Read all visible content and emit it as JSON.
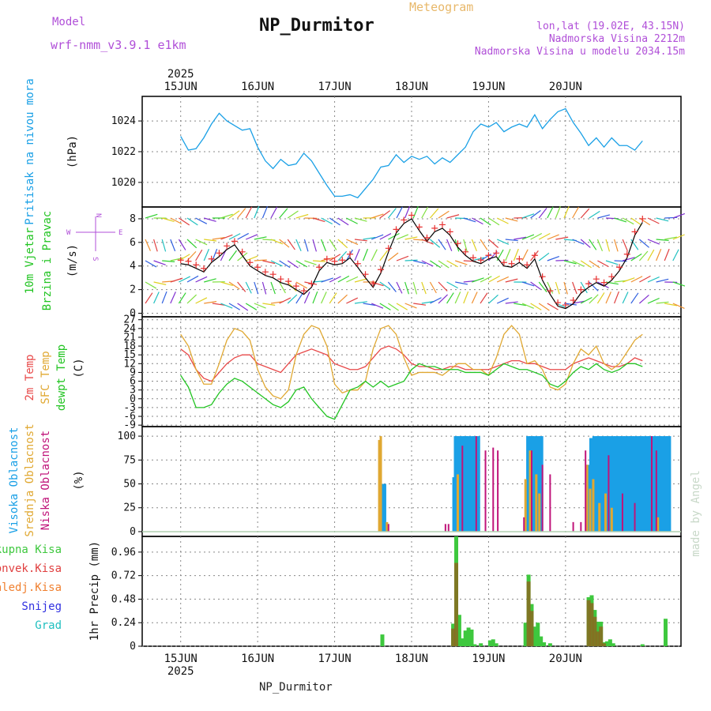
{
  "header": {
    "model_label": "Model",
    "model_value": "wrf-nmm_v3.9.1  e1km",
    "meteogram_label": "Meteogram",
    "station": "NP_Durmitor",
    "lonlat": "lon,lat (19.02E, 43.15N)",
    "elevation": "Nadmorska Visina 2212m",
    "model_elevation": "Nadmorska Visina u modelu 2034.15m"
  },
  "footer": {
    "station": "NP_Durmitor",
    "watermark": "made by Angel"
  },
  "colors": {
    "pressure": "#1aa0e6",
    "t2m": "#e84848",
    "sfc": "#e0a832",
    "dewpt": "#22c422",
    "high": "#1aa0e6",
    "mid": "#e0a832",
    "low": "#c0147a",
    "total_precip": "#3ec83e",
    "conv": "#e04040",
    "frozen": "#f08030",
    "snow": "#3030e0",
    "hail": "#20c0c0",
    "wind_line": "#000000",
    "wind_marks": "#e83030"
  },
  "chart_data": [
    {
      "type": "line",
      "id": "pressure",
      "years": [
        "2025",
        "2025"
      ],
      "x_ticks": [
        "15JUN",
        "16JUN",
        "17JUN",
        "18JUN",
        "19JUN",
        "20JUN"
      ],
      "ylabel_main": "Pritisak na nivou mora",
      "ylabel_unit": "(hPa)",
      "yticks": [
        1020,
        1022,
        1024
      ],
      "ylim": [
        1018.4,
        1025.6
      ],
      "grid": true,
      "series": [
        {
          "x": [
            0,
            0.1,
            0.2,
            0.3,
            0.4,
            0.5,
            0.6,
            0.7,
            0.8,
            0.9,
            1.0,
            1.1,
            1.2,
            1.3,
            1.4,
            1.5,
            1.6,
            1.7,
            1.8,
            1.9,
            2.0,
            2.1,
            2.2,
            2.3,
            2.4,
            2.5,
            2.6,
            2.7,
            2.8,
            2.9,
            3.0,
            3.1,
            3.2,
            3.3,
            3.4,
            3.5,
            3.6,
            3.7,
            3.8,
            3.9,
            4.0,
            4.1,
            4.2,
            4.3,
            4.4,
            4.5,
            4.6,
            4.7,
            4.8,
            4.9,
            5.0,
            5.1,
            5.2,
            5.3,
            5.4,
            5.5,
            5.6,
            5.7,
            5.8,
            5.9,
            6.0
          ],
          "values": [
            1023.0,
            1022.1,
            1022.2,
            1022.9,
            1023.8,
            1024.5,
            1024.0,
            1023.7,
            1023.4,
            1023.5,
            1022.3,
            1021.4,
            1020.9,
            1021.5,
            1021.1,
            1021.2,
            1021.9,
            1021.4,
            1020.6,
            1019.8,
            1019.1,
            1019.1,
            1019.2,
            1019.0,
            1019.6,
            1020.2,
            1021.0,
            1021.1,
            1021.8,
            1021.3,
            1021.7,
            1021.5,
            1021.7,
            1021.2,
            1021.6,
            1021.3,
            1021.8,
            1022.3,
            1023.3,
            1023.8,
            1023.6,
            1023.9,
            1023.3,
            1023.6,
            1023.8,
            1023.6,
            1024.4,
            1023.5,
            1024.1,
            1024.6,
            1024.8,
            1023.9,
            1023.2,
            1022.4,
            1022.9,
            1022.3,
            1022.9,
            1022.4,
            1022.4,
            1022.1,
            1022.7
          ]
        }
      ]
    },
    {
      "type": "line",
      "id": "wind",
      "ylabel_main": [
        "10m Vjetar",
        "Brzina i Pravac"
      ],
      "ylabel_unit": "(m/s)",
      "compass": {
        "n": "N",
        "e": "E",
        "w": "W",
        "s": "S"
      },
      "yticks": [
        0,
        2,
        4,
        6,
        8
      ],
      "ylim": [
        -0.3,
        9.0
      ],
      "series": [
        {
          "name": "speed",
          "x": [
            0,
            0.1,
            0.2,
            0.3,
            0.4,
            0.5,
            0.6,
            0.7,
            0.8,
            0.9,
            1.0,
            1.1,
            1.2,
            1.3,
            1.4,
            1.5,
            1.6,
            1.7,
            1.8,
            1.9,
            2.0,
            2.1,
            2.2,
            2.3,
            2.4,
            2.5,
            2.6,
            2.7,
            2.8,
            2.9,
            3.0,
            3.1,
            3.2,
            3.3,
            3.4,
            3.5,
            3.6,
            3.7,
            3.8,
            3.9,
            4.0,
            4.1,
            4.2,
            4.3,
            4.4,
            4.5,
            4.6,
            4.7,
            4.8,
            4.9,
            5.0,
            5.1,
            5.2,
            5.3,
            5.4,
            5.5,
            5.6,
            5.7,
            5.8,
            5.9,
            6.0
          ],
          "values": [
            4.2,
            4.1,
            3.8,
            3.5,
            4.3,
            4.8,
            5.4,
            5.8,
            4.9,
            4.0,
            3.6,
            3.2,
            3.0,
            2.6,
            2.4,
            2.0,
            1.6,
            2.2,
            3.6,
            4.3,
            4.1,
            4.2,
            4.7,
            3.9,
            3.0,
            2.2,
            3.4,
            5.2,
            6.8,
            7.6,
            8.0,
            7.0,
            6.1,
            6.9,
            7.2,
            6.6,
            5.6,
            4.9,
            4.4,
            4.2,
            4.6,
            4.8,
            4.0,
            3.9,
            4.3,
            3.8,
            4.6,
            2.8,
            1.6,
            0.6,
            0.4,
            0.8,
            1.7,
            2.2,
            2.6,
            2.3,
            2.8,
            3.6,
            4.7,
            6.6,
            7.7
          ]
        }
      ]
    },
    {
      "type": "line",
      "id": "temperature",
      "ylabel_main": [
        "2m Temp",
        "SFC Temp",
        "dewpt Temp"
      ],
      "ylabel_unit": "(C)",
      "yticks": [
        -9,
        -6,
        -3,
        0,
        3,
        6,
        9,
        12,
        15,
        18,
        21,
        24,
        27
      ],
      "ylim": [
        -9.5,
        28
      ],
      "series": [
        {
          "name": "2m Temp",
          "x": [
            0,
            0.1,
            0.2,
            0.3,
            0.4,
            0.5,
            0.6,
            0.7,
            0.8,
            0.9,
            1.0,
            1.1,
            1.2,
            1.3,
            1.4,
            1.5,
            1.6,
            1.7,
            1.8,
            1.9,
            2.0,
            2.1,
            2.2,
            2.3,
            2.4,
            2.5,
            2.6,
            2.7,
            2.8,
            2.9,
            3.0,
            3.1,
            3.2,
            3.3,
            3.4,
            3.5,
            3.6,
            3.7,
            3.8,
            3.9,
            4.0,
            4.1,
            4.2,
            4.3,
            4.4,
            4.5,
            4.6,
            4.7,
            4.8,
            4.9,
            5.0,
            5.1,
            5.2,
            5.3,
            5.4,
            5.5,
            5.6,
            5.7,
            5.8,
            5.9,
            6.0
          ],
          "values": [
            17,
            15,
            10,
            7,
            6,
            9,
            12,
            14,
            15,
            15,
            12,
            11,
            10,
            9,
            12,
            15,
            16,
            17,
            16,
            15,
            12,
            11,
            10,
            10,
            11,
            14,
            17,
            18,
            17,
            15,
            12,
            11,
            11,
            10,
            10,
            11,
            11,
            10,
            10,
            10,
            10,
            11,
            12,
            13,
            13,
            12,
            12,
            11,
            10,
            10,
            10,
            12,
            13,
            14,
            13,
            12,
            11,
            11,
            12,
            14,
            13
          ]
        },
        {
          "name": "SFC Temp",
          "x": [
            0,
            0.1,
            0.2,
            0.3,
            0.4,
            0.5,
            0.6,
            0.7,
            0.8,
            0.9,
            1.0,
            1.1,
            1.2,
            1.3,
            1.4,
            1.5,
            1.6,
            1.7,
            1.8,
            1.9,
            2.0,
            2.1,
            2.2,
            2.3,
            2.4,
            2.5,
            2.6,
            2.7,
            2.8,
            2.9,
            3.0,
            3.1,
            3.2,
            3.3,
            3.4,
            3.5,
            3.6,
            3.7,
            3.8,
            3.9,
            4.0,
            4.1,
            4.2,
            4.3,
            4.4,
            4.5,
            4.6,
            4.7,
            4.8,
            4.9,
            5.0,
            5.1,
            5.2,
            5.3,
            5.4,
            5.5,
            5.6,
            5.7,
            5.8,
            5.9,
            6.0
          ],
          "values": [
            22,
            18,
            10,
            5,
            5,
            12,
            20,
            24,
            23,
            20,
            10,
            4,
            1,
            0,
            3,
            15,
            22,
            25,
            24,
            18,
            5,
            2,
            3,
            3,
            6,
            17,
            24,
            25,
            22,
            14,
            8,
            9,
            9,
            9,
            8,
            10,
            12,
            12,
            10,
            10,
            8,
            14,
            22,
            25,
            22,
            12,
            13,
            10,
            4,
            3,
            5,
            12,
            17,
            15,
            18,
            12,
            10,
            12,
            16,
            20,
            22
          ]
        },
        {
          "name": "dewpt Temp",
          "x": [
            0,
            0.1,
            0.2,
            0.3,
            0.4,
            0.5,
            0.6,
            0.7,
            0.8,
            0.9,
            1.0,
            1.1,
            1.2,
            1.3,
            1.4,
            1.5,
            1.6,
            1.7,
            1.8,
            1.9,
            2.0,
            2.1,
            2.2,
            2.3,
            2.4,
            2.5,
            2.6,
            2.7,
            2.8,
            2.9,
            3.0,
            3.1,
            3.2,
            3.3,
            3.4,
            3.5,
            3.6,
            3.7,
            3.8,
            3.9,
            4.0,
            4.1,
            4.2,
            4.3,
            4.4,
            4.5,
            4.6,
            4.7,
            4.8,
            4.9,
            5.0,
            5.1,
            5.2,
            5.3,
            5.4,
            5.5,
            5.6,
            5.7,
            5.8,
            5.9,
            6.0
          ],
          "values": [
            8,
            4,
            -3,
            -3,
            -2,
            2,
            5,
            7,
            6,
            4,
            2,
            0,
            -2,
            -3,
            -1,
            3,
            4,
            0,
            -3,
            -6,
            -7,
            -2,
            3,
            4,
            6,
            4,
            6,
            4,
            5,
            6,
            10,
            12,
            11,
            11,
            10,
            10,
            10,
            9,
            9,
            9,
            8,
            10,
            12,
            11,
            10,
            10,
            9,
            8,
            5,
            4,
            6,
            9,
            11,
            10,
            12,
            10,
            9,
            10,
            12,
            12,
            11
          ]
        }
      ]
    },
    {
      "type": "bar",
      "id": "clouds",
      "ylabel_main": [
        "Visoka Oblacnost",
        "Srednja Oblacnost",
        "Niska Oblacnost"
      ],
      "ylabel_unit": "(%)",
      "yticks": [
        0,
        25,
        50,
        75,
        100
      ],
      "ylim": [
        -5,
        110
      ],
      "series": [
        {
          "name": "Visoka Oblacnost",
          "x": [
            2.62,
            2.64,
            3.56,
            3.58,
            3.62,
            3.66,
            3.7,
            3.74,
            3.78,
            3.82,
            3.86,
            4.52,
            4.56,
            4.6,
            4.64,
            4.68,
            5.3,
            5.34,
            5.38,
            5.42,
            5.46,
            5.5,
            5.54,
            5.58,
            5.62,
            5.66,
            5.7,
            5.74,
            5.78,
            5.82,
            5.86,
            5.9,
            5.94,
            5.98,
            6.02,
            6.06,
            6.1,
            6.14,
            6.18,
            6.22,
            6.26,
            6.3,
            6.34
          ],
          "values": [
            50,
            50,
            57,
            100,
            100,
            100,
            100,
            100,
            100,
            100,
            100,
            100,
            100,
            100,
            100,
            100,
            70,
            98,
            100,
            100,
            100,
            100,
            100,
            100,
            100,
            100,
            100,
            100,
            100,
            100,
            100,
            100,
            100,
            100,
            100,
            100,
            100,
            100,
            100,
            100,
            100,
            100,
            100
          ]
        },
        {
          "name": "Srednja Oblacnost",
          "x": [
            2.58,
            2.6,
            2.68,
            3.6,
            4.48,
            4.54,
            4.62,
            4.66,
            5.28,
            5.32,
            5.36,
            5.44,
            5.52,
            5.6,
            6.2
          ],
          "values": [
            96,
            100,
            10,
            60,
            55,
            85,
            60,
            40,
            70,
            45,
            55,
            30,
            40,
            25,
            15
          ]
        },
        {
          "name": "Niska Oblacnost",
          "x": [
            2.7,
            3.44,
            3.48,
            3.66,
            3.84,
            3.96,
            4.06,
            4.12,
            4.46,
            4.56,
            4.7,
            4.8,
            5.1,
            5.2,
            5.26,
            5.56,
            5.74,
            5.9,
            6.12,
            6.18
          ],
          "values": [
            8,
            8,
            8,
            90,
            100,
            85,
            88,
            85,
            15,
            85,
            70,
            60,
            10,
            10,
            85,
            80,
            40,
            30,
            100,
            85
          ]
        }
      ]
    },
    {
      "type": "bar",
      "id": "precip",
      "legend": [
        "Ukupna Kisa",
        "Konvek.Kisa",
        "Zaledj.Kisa",
        "Snijeg",
        "Grad"
      ],
      "ylabel_unit": "1hr Precip (mm)",
      "yticks": [
        0,
        0.24,
        0.48,
        0.72,
        0.96
      ],
      "ylim": [
        0,
        1.12
      ],
      "series": [
        {
          "name": "Ukupna Kisa",
          "x": [
            2.62,
            3.54,
            3.58,
            3.62,
            3.66,
            3.7,
            3.74,
            3.78,
            3.82,
            3.9,
            4.02,
            4.06,
            4.1,
            4.48,
            4.52,
            4.56,
            4.6,
            4.64,
            4.68,
            4.72,
            4.8,
            5.3,
            5.34,
            5.38,
            5.42,
            5.46,
            5.5,
            5.54,
            5.58,
            5.62,
            6.0,
            6.3
          ],
          "values": [
            0.12,
            0.23,
            1.12,
            0.32,
            0.08,
            0.16,
            0.19,
            0.17,
            0.02,
            0.03,
            0.06,
            0.07,
            0.03,
            0.24,
            0.73,
            0.43,
            0.2,
            0.24,
            0.1,
            0.04,
            0.03,
            0.5,
            0.52,
            0.37,
            0.25,
            0.25,
            0.04,
            0.05,
            0.07,
            0.03,
            0.02,
            0.28
          ]
        },
        {
          "name": "Konvek.Kisa",
          "x": [
            3.54,
            3.58,
            4.52,
            4.56,
            5.3,
            5.34,
            5.38,
            5.42,
            5.46,
            5.5
          ],
          "values": [
            0.18,
            0.85,
            0.66,
            0.36,
            0.47,
            0.44,
            0.3,
            0.15,
            0.2,
            0.03
          ]
        }
      ]
    }
  ]
}
